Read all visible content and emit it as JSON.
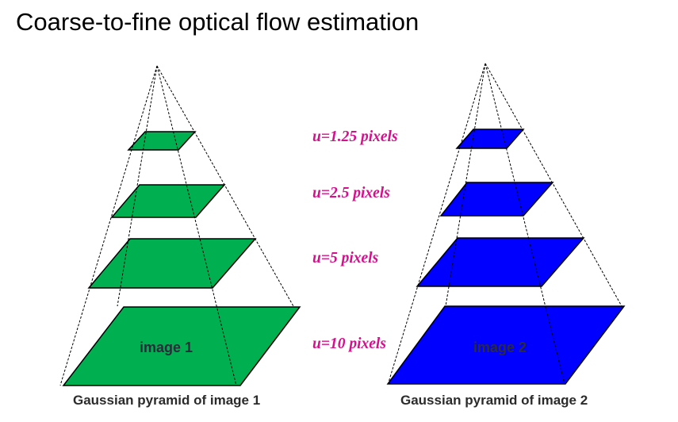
{
  "title": "Coarse-to-fine optical flow estimation",
  "colors": {
    "pyramid1": "#00b050",
    "pyramid2": "#0000ff",
    "labels": "#d4108c"
  },
  "flow_labels": [
    "u=1.25 pixels",
    "u=2.5 pixels",
    "u=5 pixels",
    "u=10 pixels"
  ],
  "pyramids": [
    {
      "image_label": "image 1",
      "caption": "Gaussian pyramid of image 1"
    },
    {
      "image_label": "image 2",
      "caption": "Gaussian pyramid of image 2"
    }
  ]
}
